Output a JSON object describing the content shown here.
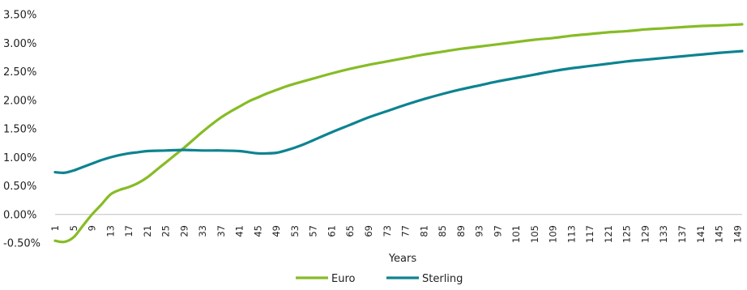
{
  "chart_data": {
    "type": "line",
    "title": "",
    "xlabel": "Years",
    "ylabel": "",
    "ylim": [
      -0.5,
      3.5
    ],
    "yticks": [
      "-0.50%",
      "0.00%",
      "0.50%",
      "1.00%",
      "1.50%",
      "2.00%",
      "2.50%",
      "3.00%",
      "3.50%"
    ],
    "xlim": [
      1,
      150
    ],
    "xticks": [
      "1",
      "5",
      "9",
      "13",
      "17",
      "21",
      "25",
      "29",
      "33",
      "37",
      "41",
      "45",
      "49",
      "53",
      "57",
      "61",
      "65",
      "69",
      "73",
      "77",
      "81",
      "85",
      "89",
      "93",
      "97",
      "101",
      "105",
      "109",
      "113",
      "117",
      "121",
      "125",
      "129",
      "133",
      "137",
      "141",
      "145",
      "149"
    ],
    "grid": false,
    "legend_position": "bottom",
    "series": [
      {
        "name": "Euro",
        "color": "#86bc25",
        "points": [
          [
            1,
            -0.46
          ],
          [
            3,
            -0.48
          ],
          [
            5,
            -0.4
          ],
          [
            7,
            -0.2
          ],
          [
            9,
            0.0
          ],
          [
            11,
            0.17
          ],
          [
            13,
            0.35
          ],
          [
            15,
            0.43
          ],
          [
            17,
            0.48
          ],
          [
            19,
            0.55
          ],
          [
            21,
            0.65
          ],
          [
            23,
            0.78
          ],
          [
            25,
            0.91
          ],
          [
            27,
            1.04
          ],
          [
            29,
            1.17
          ],
          [
            31,
            1.31
          ],
          [
            33,
            1.45
          ],
          [
            35,
            1.58
          ],
          [
            37,
            1.7
          ],
          [
            39,
            1.8
          ],
          [
            41,
            1.89
          ],
          [
            43,
            1.98
          ],
          [
            45,
            2.05
          ],
          [
            47,
            2.12
          ],
          [
            49,
            2.18
          ],
          [
            51,
            2.24
          ],
          [
            53,
            2.29
          ],
          [
            57,
            2.38
          ],
          [
            61,
            2.47
          ],
          [
            65,
            2.55
          ],
          [
            69,
            2.62
          ],
          [
            73,
            2.68
          ],
          [
            77,
            2.74
          ],
          [
            81,
            2.8
          ],
          [
            85,
            2.85
          ],
          [
            89,
            2.9
          ],
          [
            93,
            2.94
          ],
          [
            97,
            2.98
          ],
          [
            101,
            3.02
          ],
          [
            105,
            3.06
          ],
          [
            109,
            3.09
          ],
          [
            113,
            3.13
          ],
          [
            117,
            3.16
          ],
          [
            121,
            3.19
          ],
          [
            125,
            3.21
          ],
          [
            129,
            3.24
          ],
          [
            133,
            3.26
          ],
          [
            137,
            3.28
          ],
          [
            141,
            3.3
          ],
          [
            145,
            3.31
          ],
          [
            150,
            3.33
          ]
        ]
      },
      {
        "name": "Sterling",
        "color": "#0d8390",
        "points": [
          [
            1,
            0.74
          ],
          [
            3,
            0.73
          ],
          [
            5,
            0.77
          ],
          [
            7,
            0.83
          ],
          [
            9,
            0.89
          ],
          [
            11,
            0.95
          ],
          [
            13,
            1.0
          ],
          [
            15,
            1.04
          ],
          [
            17,
            1.07
          ],
          [
            19,
            1.09
          ],
          [
            21,
            1.11
          ],
          [
            25,
            1.12
          ],
          [
            29,
            1.13
          ],
          [
            33,
            1.12
          ],
          [
            37,
            1.12
          ],
          [
            41,
            1.11
          ],
          [
            43,
            1.09
          ],
          [
            45,
            1.07
          ],
          [
            47,
            1.07
          ],
          [
            49,
            1.08
          ],
          [
            51,
            1.12
          ],
          [
            53,
            1.17
          ],
          [
            55,
            1.23
          ],
          [
            57,
            1.3
          ],
          [
            61,
            1.44
          ],
          [
            65,
            1.57
          ],
          [
            69,
            1.7
          ],
          [
            73,
            1.81
          ],
          [
            77,
            1.92
          ],
          [
            81,
            2.02
          ],
          [
            85,
            2.11
          ],
          [
            89,
            2.19
          ],
          [
            93,
            2.26
          ],
          [
            97,
            2.33
          ],
          [
            101,
            2.39
          ],
          [
            105,
            2.45
          ],
          [
            109,
            2.51
          ],
          [
            113,
            2.56
          ],
          [
            117,
            2.6
          ],
          [
            121,
            2.64
          ],
          [
            125,
            2.68
          ],
          [
            129,
            2.71
          ],
          [
            133,
            2.74
          ],
          [
            137,
            2.77
          ],
          [
            141,
            2.8
          ],
          [
            145,
            2.83
          ],
          [
            150,
            2.86
          ]
        ]
      }
    ]
  }
}
